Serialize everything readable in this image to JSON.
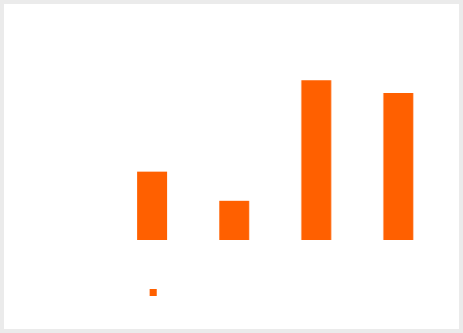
{
  "chart_data": {
    "type": "bar",
    "categories": [
      null,
      null,
      null,
      null
    ],
    "series": [
      {
        "color": "#ff6000",
        "values": [
          87,
          50,
          203,
          187
        ]
      }
    ],
    "legend": true
  }
}
